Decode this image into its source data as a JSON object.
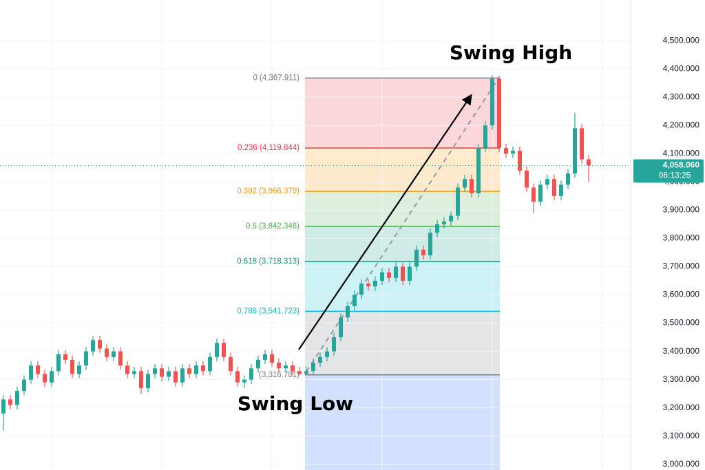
{
  "chart_data": {
    "type": "candlestick",
    "open": [
      3180,
      3230,
      3210,
      3260,
      3300,
      3350,
      3320,
      3290,
      3330,
      3390,
      3370,
      3320,
      3350,
      3400,
      3440,
      3410,
      3380,
      3400,
      3350,
      3320,
      3330,
      3270,
      3320,
      3340,
      3310,
      3330,
      3290,
      3340,
      3320,
      3350,
      3330,
      3380,
      3430,
      3380,
      3330,
      3290,
      3300,
      3340,
      3370,
      3390,
      3360,
      3340,
      3350,
      3330,
      3320,
      3330,
      3360,
      3380,
      3400,
      3450,
      3520,
      3560,
      3600,
      3640,
      3630,
      3650,
      3680,
      3660,
      3700,
      3650,
      3700,
      3760,
      3740,
      3820,
      3850,
      3860,
      3880,
      3980,
      4010,
      3960,
      4120,
      4200,
      4365,
      4120,
      4100,
      4110,
      4040,
      3980,
      3930,
      3990,
      4010,
      3950,
      3990,
      4030,
      4190,
      4080
    ],
    "high": [
      3245,
      3245,
      3275,
      3315,
      3365,
      3365,
      3335,
      3345,
      3405,
      3405,
      3385,
      3365,
      3415,
      3455,
      3455,
      3425,
      3415,
      3415,
      3365,
      3345,
      3345,
      3335,
      3355,
      3355,
      3345,
      3345,
      3355,
      3355,
      3365,
      3365,
      3395,
      3445,
      3445,
      3395,
      3345,
      3315,
      3355,
      3385,
      3405,
      3405,
      3375,
      3365,
      3365,
      3345,
      3345,
      3375,
      3395,
      3415,
      3465,
      3535,
      3575,
      3615,
      3655,
      3655,
      3665,
      3695,
      3695,
      3715,
      3715,
      3715,
      3775,
      3775,
      3835,
      3865,
      3875,
      3895,
      3995,
      4025,
      4025,
      4135,
      4215,
      4378,
      4375,
      4135,
      4125,
      4125,
      4055,
      3995,
      4005,
      4025,
      4025,
      4005,
      4045,
      4245,
      4205,
      4095
    ],
    "low": [
      3120,
      3195,
      3195,
      3245,
      3285,
      3305,
      3275,
      3275,
      3315,
      3355,
      3305,
      3305,
      3335,
      3385,
      3395,
      3365,
      3365,
      3335,
      3305,
      3305,
      3250,
      3255,
      3305,
      3295,
      3295,
      3275,
      3275,
      3305,
      3305,
      3315,
      3315,
      3365,
      3365,
      3315,
      3275,
      3270,
      3285,
      3325,
      3355,
      3345,
      3325,
      3325,
      3315,
      3317,
      3318,
      3320,
      3345,
      3365,
      3385,
      3435,
      3505,
      3545,
      3585,
      3615,
      3615,
      3635,
      3645,
      3645,
      3635,
      3635,
      3685,
      3725,
      3725,
      3805,
      3835,
      3845,
      3865,
      3965,
      3945,
      3945,
      4105,
      4185,
      4105,
      4085,
      4085,
      4025,
      3965,
      3890,
      3915,
      3975,
      3935,
      3935,
      3975,
      4015,
      4065,
      4000
    ],
    "close": [
      3230,
      3210,
      3260,
      3300,
      3350,
      3320,
      3290,
      3330,
      3390,
      3370,
      3320,
      3350,
      3400,
      3440,
      3410,
      3380,
      3400,
      3350,
      3320,
      3330,
      3270,
      3320,
      3340,
      3310,
      3330,
      3290,
      3340,
      3320,
      3350,
      3330,
      3380,
      3430,
      3380,
      3330,
      3290,
      3300,
      3340,
      3370,
      3390,
      3360,
      3340,
      3350,
      3330,
      3320,
      3330,
      3360,
      3380,
      3400,
      3450,
      3520,
      3560,
      3600,
      3640,
      3630,
      3650,
      3680,
      3660,
      3700,
      3650,
      3700,
      3760,
      3740,
      3820,
      3850,
      3860,
      3880,
      3980,
      4010,
      3960,
      4120,
      4200,
      4365,
      4120,
      4100,
      4110,
      4040,
      3980,
      3930,
      3990,
      4010,
      3950,
      3990,
      4030,
      4190,
      4080,
      4058
    ],
    "up_color": "#26a69a",
    "down_color": "#ef5350",
    "ylim": [
      2980,
      4644
    ],
    "yticks": [
      {
        "value": 3000,
        "label": "3,000.000"
      },
      {
        "value": 3100,
        "label": "3,100.000"
      },
      {
        "value": 3200,
        "label": "3,200.000"
      },
      {
        "value": 3300,
        "label": "3,300.000"
      },
      {
        "value": 3400,
        "label": "3,400.000"
      },
      {
        "value": 3500,
        "label": "3,500.000"
      },
      {
        "value": 3600,
        "label": "3,600.000"
      },
      {
        "value": 3700,
        "label": "3,700.000"
      },
      {
        "value": 3800,
        "label": "3,800.000"
      },
      {
        "value": 3900,
        "label": "3,900.000"
      },
      {
        "value": 4000,
        "label": "4,000.000"
      },
      {
        "value": 4100,
        "label": "4,100.000"
      },
      {
        "value": 4200,
        "label": "4,200.000"
      },
      {
        "value": 4300,
        "label": "4,300.000"
      },
      {
        "value": 4400,
        "label": "4,400.000"
      },
      {
        "value": 4500,
        "label": "4,500.000"
      }
    ],
    "grid": true,
    "fib_levels": [
      {
        "value": 4367.911,
        "label": "0 (4,367.911)",
        "color": "#787b86",
        "fill": "rgba(242,54,69,0.2)"
      },
      {
        "value": 4119.844,
        "label": "0.236 (4,119.844)",
        "color": "#f23645",
        "fill": "rgba(255,152,0,0.2)"
      },
      {
        "value": 3966.379,
        "label": "0.382 (3,966.379)",
        "color": "#ff9800",
        "fill": "rgba(76,175,80,0.2)"
      },
      {
        "value": 3842.346,
        "label": "0.5 (3,842.346)",
        "color": "#4caf50",
        "fill": "rgba(8,153,129,0.2)"
      },
      {
        "value": 3718.313,
        "label": "0.618 (3,718.313)",
        "color": "#089981",
        "fill": "rgba(0,188,212,0.2)"
      },
      {
        "value": 3541.723,
        "label": "0.786 (3,541.723)",
        "color": "#00bcd4",
        "fill": "rgba(120,123,134,0.2)"
      },
      {
        "value": 3316.781,
        "label": "(3,316.781)",
        "color": "#787b86",
        "fill": "rgba(41,98,255,0.2)"
      }
    ],
    "current_price": {
      "value": 4058.06,
      "label": "4,058.060",
      "countdown": "06:13:25",
      "color": "#26a69a"
    },
    "annotations": [
      "Swing High",
      "Swing Low"
    ]
  }
}
